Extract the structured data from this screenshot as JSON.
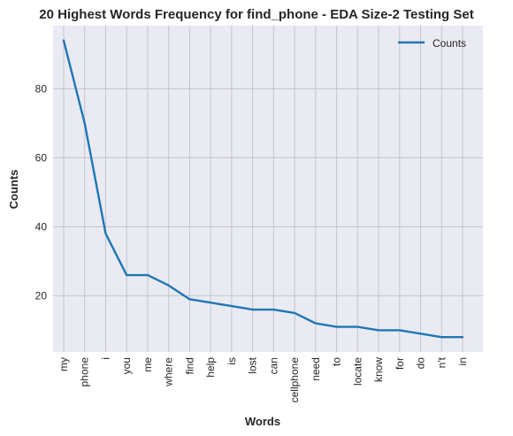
{
  "chart_data": {
    "type": "line",
    "title": "20 Highest Words Frequency for find_phone - EDA Size-2 Testing Set",
    "xlabel": "Words",
    "ylabel": "Counts",
    "categories": [
      "my",
      "phone",
      "i",
      "you",
      "me",
      "where",
      "find",
      "help",
      "is",
      "lost",
      "can",
      "cellphone",
      "need",
      "to",
      "locate",
      "know",
      "for",
      "do",
      "n't",
      "in"
    ],
    "series": [
      {
        "name": "Counts",
        "values": [
          94,
          70,
          38,
          26,
          26,
          23,
          19,
          18,
          17,
          16,
          16,
          15,
          12,
          11,
          11,
          10,
          10,
          9,
          8,
          8
        ]
      }
    ],
    "ylim": [
      3.7,
      98.3
    ],
    "yticks": [
      20,
      40,
      60,
      80
    ],
    "grid": true,
    "legend_position": "top-right",
    "colors": {
      "series": "#1f77b4",
      "background": "#eaeaf2",
      "grid": "#c4c4cc"
    }
  }
}
